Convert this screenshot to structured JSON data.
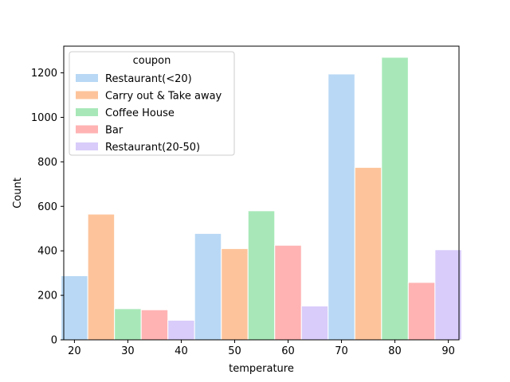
{
  "chart_data": {
    "type": "bar",
    "xlabel": "temperature",
    "ylabel": "Count",
    "xlim": [
      18,
      92
    ],
    "ylim": [
      0,
      1320
    ],
    "xticks": [
      20,
      30,
      40,
      50,
      60,
      70,
      80,
      90
    ],
    "yticks": [
      0,
      200,
      400,
      600,
      800,
      1000,
      1200
    ],
    "grid": false,
    "legend": {
      "title": "coupon",
      "placement": "top-left"
    },
    "categories": [
      30,
      55,
      80
    ],
    "series": [
      {
        "name": "Restaurant(<20)",
        "color": "#b8d8f5",
        "values": [
          288,
          478,
          1195
        ]
      },
      {
        "name": "Carry out & Take away",
        "color": "#fdc49b",
        "values": [
          565,
          410,
          775
        ]
      },
      {
        "name": "Coffee House",
        "color": "#a8e8b8",
        "values": [
          140,
          580,
          1270
        ]
      },
      {
        "name": "Bar",
        "color": "#ffb3b3",
        "values": [
          135,
          425,
          258
        ]
      },
      {
        "name": "Restaurant(20-50)",
        "color": "#d9ccfa",
        "values": [
          88,
          152,
          405
        ]
      }
    ]
  }
}
